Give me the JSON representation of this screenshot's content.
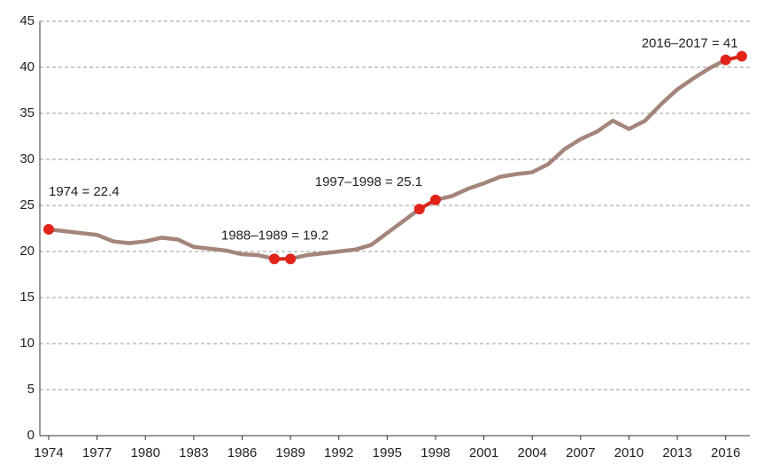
{
  "chart_data": {
    "type": "line",
    "x": [
      1974,
      1975,
      1976,
      1977,
      1978,
      1979,
      1980,
      1981,
      1982,
      1983,
      1984,
      1985,
      1986,
      1987,
      1988,
      1989,
      1990,
      1991,
      1992,
      1993,
      1994,
      1995,
      1996,
      1997,
      1998,
      1999,
      2000,
      2001,
      2002,
      2003,
      2004,
      2005,
      2006,
      2007,
      2008,
      2009,
      2010,
      2011,
      2012,
      2013,
      2014,
      2015,
      2016,
      2017
    ],
    "series": [
      {
        "color": "#a3857a",
        "values": [
          22.4,
          22.2,
          22.0,
          21.8,
          21.1,
          20.9,
          21.1,
          21.5,
          21.3,
          20.5,
          20.3,
          20.1,
          19.7,
          19.6,
          19.2,
          19.2,
          19.6,
          19.8,
          20.0,
          20.2,
          20.7,
          22.0,
          23.3,
          24.6,
          25.6,
          26.0,
          26.8,
          27.4,
          28.1,
          28.4,
          28.6,
          29.5,
          31.1,
          32.2,
          33.0,
          34.2,
          33.3,
          34.2,
          36.0,
          37.6,
          38.8,
          39.9,
          40.8,
          41.2
        ]
      }
    ],
    "highlight_color": "#e2231a",
    "annotations": [
      {
        "text": "1974 = 22.4",
        "points": [
          0
        ]
      },
      {
        "text": "1988–1989 = 19.2",
        "points": [
          14,
          15
        ]
      },
      {
        "text": "1997–1998 = 25.1",
        "points": [
          23,
          24
        ]
      },
      {
        "text": "2016–2017 = 41",
        "points": [
          42,
          43
        ]
      }
    ],
    "xlim": [
      1973.45,
      2017.5
    ],
    "xticks": [
      1974,
      1977,
      1980,
      1983,
      1986,
      1989,
      1992,
      1995,
      1998,
      2001,
      2004,
      2007,
      2010,
      2013,
      2016
    ],
    "ylim": [
      0,
      45
    ],
    "yticks": [
      0,
      5,
      10,
      15,
      20,
      25,
      30,
      35,
      40,
      45
    ],
    "grid": true
  }
}
